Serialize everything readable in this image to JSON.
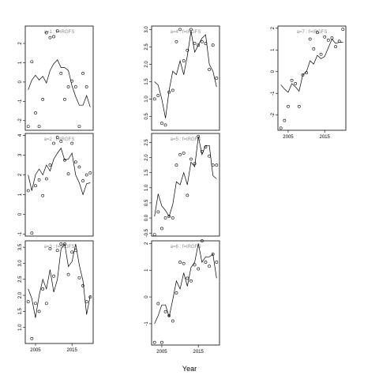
{
  "chart_data": {
    "type": "line",
    "xlabel": "Year",
    "panels": [
      {
        "title": "a=1 : f=IRGFS",
        "ylim": [
          -2.5,
          2.9
        ],
        "yticks": [
          -2,
          -1,
          0,
          1,
          2
        ],
        "x": [
          2003,
          2004,
          2005,
          2006,
          2007,
          2008,
          2009,
          2010,
          2011,
          2012,
          2013,
          2014,
          2015,
          2016,
          2017,
          2018,
          2019,
          2020
        ],
        "line": [
          -0.4,
          0.1,
          0.35,
          0.1,
          0.3,
          -0.05,
          0.6,
          0.95,
          1.15,
          0.75,
          0.75,
          0.6,
          -0.2,
          -0.75,
          -1.2,
          -1.2,
          -0.7,
          -1.3
        ],
        "points": [
          {
            "x": 2003,
            "y": -2.3
          },
          {
            "x": 2004,
            "y": 1.05
          },
          {
            "x": 2005,
            "y": -1.6
          },
          {
            "x": 2006,
            "y": -2.3
          },
          {
            "x": 2007,
            "y": -0.9
          },
          {
            "x": 2008,
            "y": 2.55
          },
          {
            "x": 2009,
            "y": 2.3
          },
          {
            "x": 2010,
            "y": 2.35
          },
          {
            "x": 2011,
            "y": 2.65
          },
          {
            "x": 2012,
            "y": 0.45
          },
          {
            "x": 2013,
            "y": -0.9
          },
          {
            "x": 2014,
            "y": -0.25
          },
          {
            "x": 2015,
            "y": 0.05
          },
          {
            "x": 2016,
            "y": -0.25
          },
          {
            "x": 2017,
            "y": -2.3
          },
          {
            "x": 2018,
            "y": 0.45
          },
          {
            "x": 2019,
            "y": -0.25
          }
        ]
      },
      {
        "title": "a=2 : f=IRGFS",
        "ylim": [
          -1.1,
          4.1
        ],
        "yticks": [
          -1,
          0,
          1,
          2,
          3,
          4
        ],
        "x": [
          2003,
          2004,
          2005,
          2006,
          2007,
          2008,
          2009,
          2010,
          2011,
          2012,
          2013,
          2014,
          2015,
          2016,
          2017,
          2018,
          2019,
          2020
        ],
        "line": [
          2.0,
          1.2,
          2.0,
          2.3,
          2.0,
          2.5,
          2.2,
          2.8,
          3.1,
          3.35,
          2.75,
          2.8,
          3.1,
          2.0,
          1.6,
          1.0,
          1.55,
          1.6
        ],
        "points": [
          {
            "x": 2003,
            "y": 1.2
          },
          {
            "x": 2004,
            "y": -0.95
          },
          {
            "x": 2005,
            "y": 1.45
          },
          {
            "x": 2006,
            "y": 1.75
          },
          {
            "x": 2007,
            "y": 0.95
          },
          {
            "x": 2008,
            "y": 1.8
          },
          {
            "x": 2009,
            "y": 2.5
          },
          {
            "x": 2010,
            "y": 3.6
          },
          {
            "x": 2011,
            "y": 3.9
          },
          {
            "x": 2012,
            "y": 3.7
          },
          {
            "x": 2013,
            "y": 2.75
          },
          {
            "x": 2014,
            "y": 2.05
          },
          {
            "x": 2015,
            "y": 3.6
          },
          {
            "x": 2016,
            "y": 2.65
          },
          {
            "x": 2017,
            "y": 2.4
          },
          {
            "x": 2018,
            "y": 1.7
          },
          {
            "x": 2019,
            "y": 2.0
          },
          {
            "x": 2020,
            "y": 2.1
          }
        ]
      },
      {
        "title": "a=3 : f=IRGFS",
        "ylim": [
          0.5,
          3.7
        ],
        "yticks": [
          1.0,
          1.5,
          2.0,
          2.5,
          3.0,
          3.5
        ],
        "x": [
          2003,
          2004,
          2005,
          2006,
          2007,
          2008,
          2009,
          2010,
          2011,
          2012,
          2013,
          2014,
          2015,
          2016,
          2017,
          2018,
          2019,
          2020
        ],
        "line": [
          2.2,
          1.9,
          1.3,
          2.0,
          2.5,
          2.2,
          2.8,
          2.1,
          2.5,
          3.45,
          3.6,
          2.9,
          3.05,
          3.6,
          2.95,
          2.45,
          1.4,
          2.0
        ],
        "points": [
          {
            "x": 2003,
            "y": 1.8
          },
          {
            "x": 2004,
            "y": 0.65
          },
          {
            "x": 2005,
            "y": 1.75
          },
          {
            "x": 2006,
            "y": 1.5
          },
          {
            "x": 2007,
            "y": 2.2
          },
          {
            "x": 2008,
            "y": 1.75
          },
          {
            "x": 2009,
            "y": 3.45
          },
          {
            "x": 2010,
            "y": 2.6
          },
          {
            "x": 2011,
            "y": 3.4
          },
          {
            "x": 2012,
            "y": 3.6
          },
          {
            "x": 2013,
            "y": 3.6
          },
          {
            "x": 2014,
            "y": 2.65
          },
          {
            "x": 2015,
            "y": 3.35
          },
          {
            "x": 2016,
            "y": 3.4
          },
          {
            "x": 2017,
            "y": 2.55
          },
          {
            "x": 2018,
            "y": 2.3
          },
          {
            "x": 2019,
            "y": 1.8
          },
          {
            "x": 2020,
            "y": 1.95
          }
        ]
      },
      {
        "title": "a=4 : f=IRGFS",
        "ylim": [
          0.1,
          3.1
        ],
        "yticks": [
          0.5,
          1.0,
          1.5,
          2.0,
          2.5,
          3.0
        ],
        "x": [
          2003,
          2004,
          2005,
          2006,
          2007,
          2008,
          2009,
          2010,
          2011,
          2012,
          2013,
          2014,
          2015,
          2016,
          2017,
          2018,
          2019,
          2020
        ],
        "line": [
          1.5,
          1.4,
          1.0,
          0.45,
          1.25,
          1.8,
          1.7,
          2.1,
          1.7,
          2.25,
          2.95,
          2.35,
          2.55,
          2.75,
          2.85,
          2.0,
          1.8,
          1.35
        ],
        "points": [
          {
            "x": 2003,
            "y": 1.0
          },
          {
            "x": 2004,
            "y": 1.1
          },
          {
            "x": 2005,
            "y": 0.3
          },
          {
            "x": 2006,
            "y": 0.25
          },
          {
            "x": 2007,
            "y": 1.2
          },
          {
            "x": 2008,
            "y": 1.25
          },
          {
            "x": 2009,
            "y": 2.65
          },
          {
            "x": 2010,
            "y": 3.0
          },
          {
            "x": 2011,
            "y": 2.1
          },
          {
            "x": 2012,
            "y": 2.4
          },
          {
            "x": 2013,
            "y": 3.0
          },
          {
            "x": 2014,
            "y": 2.6
          },
          {
            "x": 2015,
            "y": 2.55
          },
          {
            "x": 2016,
            "y": 2.65
          },
          {
            "x": 2017,
            "y": 2.6
          },
          {
            "x": 2018,
            "y": 1.85
          },
          {
            "x": 2019,
            "y": 2.55
          },
          {
            "x": 2020,
            "y": 1.6
          }
        ]
      },
      {
        "title": "a=5 : f=IRGFS",
        "ylim": [
          -0.6,
          2.8
        ],
        "yticks": [
          -0.5,
          0.0,
          0.5,
          1.0,
          1.5,
          2.0,
          2.5
        ],
        "x": [
          2003,
          2004,
          2005,
          2006,
          2007,
          2008,
          2009,
          2010,
          2011,
          2012,
          2013,
          2014,
          2015,
          2016,
          2017,
          2018,
          2019,
          2020
        ],
        "line": [
          0.05,
          0.8,
          0.4,
          0.25,
          0.05,
          0.45,
          1.2,
          1.1,
          1.5,
          1.1,
          1.85,
          1.7,
          2.7,
          2.1,
          2.4,
          2.4,
          1.4,
          1.3
        ],
        "points": [
          {
            "x": 2003,
            "y": -0.55
          },
          {
            "x": 2004,
            "y": 0.2
          },
          {
            "x": 2005,
            "y": -0.35
          },
          {
            "x": 2006,
            "y": 0.0
          },
          {
            "x": 2007,
            "y": 0.05
          },
          {
            "x": 2008,
            "y": 0.0
          },
          {
            "x": 2009,
            "y": 1.75
          },
          {
            "x": 2010,
            "y": 2.1
          },
          {
            "x": 2011,
            "y": 2.15
          },
          {
            "x": 2012,
            "y": 0.75
          },
          {
            "x": 2013,
            "y": 1.95
          },
          {
            "x": 2014,
            "y": 1.8
          },
          {
            "x": 2015,
            "y": 2.7
          },
          {
            "x": 2016,
            "y": 2.2
          },
          {
            "x": 2017,
            "y": 2.35
          },
          {
            "x": 2018,
            "y": 2.05
          },
          {
            "x": 2019,
            "y": 1.75
          },
          {
            "x": 2020,
            "y": 1.75
          }
        ]
      },
      {
        "title": "a=6 : f=IRGFS",
        "ylim": [
          -1.8,
          2.1
        ],
        "yticks": [
          -1,
          0,
          1,
          2
        ],
        "x": [
          2003,
          2004,
          2005,
          2006,
          2007,
          2008,
          2009,
          2010,
          2011,
          2012,
          2013,
          2014,
          2015,
          2016,
          2017,
          2018,
          2019,
          2020
        ],
        "line": [
          -1.0,
          -0.7,
          -0.3,
          -0.3,
          -0.75,
          -0.1,
          0.6,
          0.3,
          0.9,
          0.4,
          1.1,
          1.3,
          2.0,
          1.3,
          1.5,
          1.5,
          1.6,
          0.7
        ],
        "points": [
          {
            "x": 2003,
            "y": -1.7
          },
          {
            "x": 2004,
            "y": -0.25
          },
          {
            "x": 2005,
            "y": -1.7
          },
          {
            "x": 2006,
            "y": -0.55
          },
          {
            "x": 2007,
            "y": -0.7
          },
          {
            "x": 2008,
            "y": -0.9
          },
          {
            "x": 2009,
            "y": 0.15
          },
          {
            "x": 2010,
            "y": 1.3
          },
          {
            "x": 2011,
            "y": 1.25
          },
          {
            "x": 2012,
            "y": 0.7
          },
          {
            "x": 2013,
            "y": 0.6
          },
          {
            "x": 2014,
            "y": 1.2
          },
          {
            "x": 2015,
            "y": 1.05
          },
          {
            "x": 2016,
            "y": 2.1
          },
          {
            "x": 2017,
            "y": 1.3
          },
          {
            "x": 2018,
            "y": 1.15
          },
          {
            "x": 2019,
            "y": 1.6
          },
          {
            "x": 2020,
            "y": 1.3
          }
        ]
      },
      {
        "title": "a=7 : f=IRGFS",
        "ylim": [
          -2.7,
          2.1
        ],
        "yticks": [
          -2,
          -1,
          0,
          1,
          2
        ],
        "x": [
          2003,
          2004,
          2005,
          2006,
          2007,
          2008,
          2009,
          2010,
          2011,
          2012,
          2013,
          2014,
          2015,
          2016,
          2017,
          2018,
          2019,
          2020
        ],
        "line": [
          -0.6,
          -0.8,
          -0.95,
          -0.55,
          -0.7,
          -0.9,
          -0.15,
          0.0,
          0.5,
          0.35,
          0.75,
          0.6,
          0.7,
          1.1,
          1.5,
          1.3,
          1.35,
          1.35
        ],
        "points": [
          {
            "x": 2003,
            "y": -2.6
          },
          {
            "x": 2004,
            "y": -2.25
          },
          {
            "x": 2005,
            "y": -1.6
          },
          {
            "x": 2006,
            "y": -0.4
          },
          {
            "x": 2007,
            "y": -0.55
          },
          {
            "x": 2008,
            "y": -1.6
          },
          {
            "x": 2009,
            "y": -0.15
          },
          {
            "x": 2010,
            "y": -0.05
          },
          {
            "x": 2011,
            "y": 1.5
          },
          {
            "x": 2012,
            "y": 1.05
          },
          {
            "x": 2013,
            "y": 1.8
          },
          {
            "x": 2014,
            "y": 0.8
          },
          {
            "x": 2015,
            "y": 1.6
          },
          {
            "x": 2016,
            "y": 1.45
          },
          {
            "x": 2017,
            "y": 1.55
          },
          {
            "x": 2018,
            "y": 1.15
          },
          {
            "x": 2019,
            "y": 1.4
          },
          {
            "x": 2020,
            "y": 1.95
          }
        ]
      }
    ],
    "xticks": [
      2005,
      2015
    ],
    "xlim": [
      2002.2,
      2020.8
    ]
  }
}
